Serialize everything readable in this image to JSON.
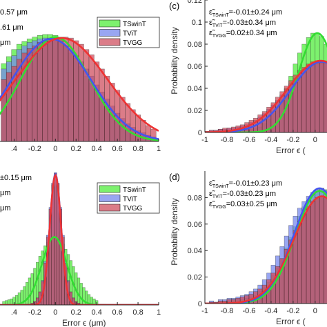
{
  "colors": {
    "TSwinT": "#33dd33",
    "TViT": "#4455ee",
    "TVGG": "#ee3333",
    "TSwinT_fill": "#66ee55",
    "TViT_fill": "#7788ee",
    "TVGG_fill": "#cc4455"
  },
  "chart_data": [
    {
      "id": "a",
      "type": "bar",
      "panel_label": "",
      "xlabel": "",
      "ylabel": "",
      "xlim": [
        -0.55,
        1.0
      ],
      "ylim": [
        0,
        0.16
      ],
      "xticks": [
        -0.4,
        -0.2,
        0,
        0.2,
        0.4,
        0.6,
        0.8,
        1
      ],
      "xtick_labels": [
        ".4",
        "-0.2",
        "0",
        "0.2",
        "0.4",
        "0.6",
        "0.8",
        "1"
      ],
      "stat_lines": [
        "0.57 μm",
        ".61 μm",
        "μm"
      ],
      "legend": [
        "TSwinT",
        "TViT",
        "TVGG"
      ],
      "legend_position": "top-right",
      "bin_centers": [
        -0.5,
        -0.45,
        -0.4,
        -0.35,
        -0.3,
        -0.25,
        -0.2,
        -0.15,
        -0.1,
        -0.05,
        0.0,
        0.05,
        0.1,
        0.15,
        0.2,
        0.25,
        0.3,
        0.35,
        0.4,
        0.45,
        0.5,
        0.55,
        0.6,
        0.65,
        0.7,
        0.75,
        0.8,
        0.85,
        0.9,
        0.95
      ],
      "series": [
        {
          "name": "TSwinT",
          "values": [
            0.088,
            0.096,
            0.104,
            0.11,
            0.113,
            0.116,
            0.118,
            0.12,
            0.121,
            0.121,
            0.12,
            0.116,
            0.108,
            0.1,
            0.094,
            0.085,
            0.074,
            0.066,
            0.055,
            0.048,
            0.04,
            0.033,
            0.025,
            0.02,
            0.015,
            0.012,
            0.008,
            0.006,
            0.004,
            0.003
          ],
          "fit": {
            "mu": 0.0,
            "sigma": 0.33,
            "peak": 0.118
          }
        },
        {
          "name": "TViT",
          "values": [
            0.082,
            0.09,
            0.097,
            0.104,
            0.108,
            0.112,
            0.114,
            0.116,
            0.117,
            0.117,
            0.116,
            0.113,
            0.108,
            0.103,
            0.097,
            0.09,
            0.082,
            0.074,
            0.064,
            0.056,
            0.048,
            0.04,
            0.032,
            0.026,
            0.02,
            0.016,
            0.012,
            0.01,
            0.007,
            0.005
          ],
          "fit": {
            "mu": -0.04,
            "sigma": 0.38,
            "peak": 0.116
          }
        },
        {
          "name": "TVGG",
          "values": [
            0.07,
            0.078,
            0.085,
            0.093,
            0.1,
            0.105,
            0.108,
            0.112,
            0.113,
            0.115,
            0.117,
            0.118,
            0.118,
            0.117,
            0.114,
            0.11,
            0.104,
            0.098,
            0.09,
            0.082,
            0.074,
            0.066,
            0.058,
            0.05,
            0.043,
            0.036,
            0.03,
            0.024,
            0.018,
            0.014
          ],
          "fit": {
            "mu": 0.06,
            "sigma": 0.44,
            "peak": 0.117
          }
        }
      ]
    },
    {
      "id": "c",
      "type": "bar",
      "panel_label": "(c)",
      "xlabel": "Error ϵ (",
      "ylabel": "Probability density",
      "xlim": [
        -1.0,
        0.12
      ],
      "ylim": [
        0,
        0.12
      ],
      "xticks": [
        -1,
        -0.8,
        -0.6,
        -0.4,
        -0.2,
        0
      ],
      "xtick_labels": [
        "-1",
        "-0.8",
        "-0.6",
        "-0.4",
        "-0.2",
        "0"
      ],
      "yticks": [
        0,
        0.02,
        0.04,
        0.06,
        0.08,
        0.1,
        0.12
      ],
      "ytick_labels": [
        "0",
        "0.02",
        "0.04",
        "0.06",
        "0.08",
        "0.1",
        "0.12"
      ],
      "stat_lines": [
        {
          "main": "ε̃",
          "sub": "TSwinT",
          "rest": "=-0.01±0.24 μm"
        },
        {
          "main": "ε̃",
          "sub": "TViT",
          "rest": "=-0.03±0.34 μm"
        },
        {
          "main": "ε̃",
          "sub": "TVGG",
          "rest": "=0.02±0.34 μm"
        }
      ],
      "bin_centers": [
        -0.98,
        -0.94,
        -0.9,
        -0.86,
        -0.82,
        -0.78,
        -0.74,
        -0.7,
        -0.66,
        -0.62,
        -0.58,
        -0.54,
        -0.5,
        -0.46,
        -0.42,
        -0.38,
        -0.34,
        -0.3,
        -0.26,
        -0.22,
        -0.18,
        -0.14,
        -0.1,
        -0.06,
        -0.02,
        0.02,
        0.06,
        0.1
      ],
      "series": [
        {
          "name": "TSwinT",
          "values": [
            0.0,
            0.0,
            0.001,
            0.0,
            0.001,
            0.0,
            0.001,
            0.001,
            0.002,
            0.002,
            0.003,
            0.004,
            0.005,
            0.008,
            0.012,
            0.017,
            0.023,
            0.03,
            0.04,
            0.051,
            0.062,
            0.072,
            0.08,
            0.086,
            0.09,
            0.09,
            0.087,
            0.08
          ],
          "fit": {
            "mu": 0.02,
            "sigma": 0.17,
            "peak": 0.09
          }
        },
        {
          "name": "TViT",
          "values": [
            0.001,
            0.002,
            0.002,
            0.003,
            0.003,
            0.004,
            0.004,
            0.005,
            0.006,
            0.007,
            0.009,
            0.011,
            0.014,
            0.017,
            0.021,
            0.025,
            0.029,
            0.034,
            0.039,
            0.044,
            0.049,
            0.054,
            0.057,
            0.06,
            0.062,
            0.063,
            0.063,
            0.063
          ],
          "fit": {
            "mu": 0.06,
            "sigma": 0.28,
            "peak": 0.064
          }
        },
        {
          "name": "TVGG",
          "values": [
            0.001,
            0.002,
            0.002,
            0.003,
            0.004,
            0.004,
            0.005,
            0.006,
            0.007,
            0.009,
            0.011,
            0.013,
            0.016,
            0.019,
            0.023,
            0.027,
            0.032,
            0.037,
            0.042,
            0.047,
            0.052,
            0.056,
            0.059,
            0.062,
            0.064,
            0.065,
            0.065,
            0.064
          ],
          "fit": {
            "mu": 0.05,
            "sigma": 0.3,
            "peak": 0.065
          }
        }
      ]
    },
    {
      "id": "b",
      "type": "bar",
      "panel_label": "",
      "xlabel": "Error ϵ (μm)",
      "ylabel": "",
      "xlim": [
        -0.55,
        1.0
      ],
      "ylim": [
        0,
        0.16
      ],
      "xticks": [
        -0.4,
        -0.2,
        0,
        0.2,
        0.4,
        0.6,
        0.8,
        1
      ],
      "xtick_labels": [
        ".4",
        "-0.2",
        "0",
        "0.2",
        "0.4",
        "0.6",
        "0.8",
        "1"
      ],
      "stat_lines": [
        "±0.15 μm",
        "μm",
        "μm"
      ],
      "legend": [
        "TSwinT",
        "TViT",
        "TVGG"
      ],
      "legend_position": "top-right",
      "bin_centers": [
        -0.5,
        -0.475,
        -0.45,
        -0.425,
        -0.4,
        -0.375,
        -0.35,
        -0.325,
        -0.3,
        -0.275,
        -0.25,
        -0.225,
        -0.2,
        -0.175,
        -0.15,
        -0.125,
        -0.1,
        -0.075,
        -0.05,
        -0.025,
        0.0,
        0.025,
        0.05,
        0.075,
        0.1,
        0.125,
        0.15,
        0.175,
        0.2,
        0.225,
        0.25,
        0.275,
        0.3,
        0.325,
        0.35,
        0.375,
        0.4
      ],
      "series": [
        {
          "name": "TSwinT",
          "values": [
            0.004,
            0.005,
            0.006,
            0.007,
            0.009,
            0.011,
            0.014,
            0.017,
            0.021,
            0.026,
            0.031,
            0.036,
            0.042,
            0.049,
            0.056,
            0.062,
            0.068,
            0.072,
            0.076,
            0.078,
            0.078,
            0.077,
            0.074,
            0.07,
            0.064,
            0.058,
            0.051,
            0.044,
            0.037,
            0.031,
            0.025,
            0.02,
            0.016,
            0.012,
            0.009,
            0.007,
            0.005
          ],
          "fit": {
            "mu": -0.01,
            "sigma": 0.12,
            "peak": 0.078
          }
        },
        {
          "name": "TViT",
          "values": [
            0.0,
            0.0,
            0.0,
            0.0,
            0.0,
            0.0,
            0.0,
            0.0,
            0.0,
            0.001,
            0.001,
            0.002,
            0.004,
            0.008,
            0.015,
            0.028,
            0.05,
            0.08,
            0.112,
            0.14,
            0.152,
            0.14,
            0.112,
            0.08,
            0.05,
            0.028,
            0.015,
            0.008,
            0.004,
            0.002,
            0.001,
            0.0,
            0.0,
            0.0,
            0.0,
            0.0,
            0.0
          ],
          "fit": {
            "mu": 0.0,
            "sigma": 0.055,
            "peak": 0.15
          }
        },
        {
          "name": "TVGG",
          "values": [
            0.0,
            0.0,
            0.0,
            0.0,
            0.0,
            0.0,
            0.0,
            0.0,
            0.0,
            0.001,
            0.001,
            0.002,
            0.004,
            0.008,
            0.015,
            0.027,
            0.048,
            0.078,
            0.11,
            0.138,
            0.151,
            0.139,
            0.11,
            0.078,
            0.048,
            0.027,
            0.015,
            0.008,
            0.004,
            0.002,
            0.001,
            0.0,
            0.0,
            0.0,
            0.0,
            0.0,
            0.0
          ],
          "fit": {
            "mu": 0.0,
            "sigma": 0.055,
            "peak": 0.149
          }
        }
      ]
    },
    {
      "id": "d",
      "type": "bar",
      "panel_label": "(d)",
      "xlabel": "Error ϵ (",
      "ylabel": "Probability density",
      "xlim": [
        -1.0,
        0.12
      ],
      "ylim": [
        0,
        0.1
      ],
      "xticks": [
        -1,
        -0.8,
        -0.6,
        -0.4,
        -0.2,
        0
      ],
      "xtick_labels": [
        "-1",
        "-0.8",
        "-0.6",
        "-0.4",
        "-0.2",
        "0"
      ],
      "yticks": [
        0,
        0.02,
        0.04,
        0.06,
        0.08
      ],
      "ytick_labels": [
        "0",
        "0.02",
        "0.04",
        "0.06",
        "0.08"
      ],
      "stat_lines": [
        {
          "main": "ε̃",
          "sub": "TSwinT",
          "rest": "=-0.01±0.23 μm"
        },
        {
          "main": "ε̃",
          "sub": "TViT",
          "rest": "=-0.03±0.23 μm"
        },
        {
          "main": "ε̃",
          "sub": "TVGG",
          "rest": "=0.03±0.25 μm"
        }
      ],
      "bin_centers": [
        -0.98,
        -0.94,
        -0.9,
        -0.86,
        -0.82,
        -0.78,
        -0.74,
        -0.7,
        -0.66,
        -0.62,
        -0.58,
        -0.54,
        -0.5,
        -0.46,
        -0.42,
        -0.38,
        -0.34,
        -0.3,
        -0.26,
        -0.22,
        -0.18,
        -0.14,
        -0.1,
        -0.06,
        -0.02,
        0.02,
        0.06,
        0.1
      ],
      "series": [
        {
          "name": "TSwinT",
          "values": [
            0.0,
            0.001,
            0.001,
            0.002,
            0.002,
            0.002,
            0.003,
            0.003,
            0.003,
            0.004,
            0.005,
            0.006,
            0.009,
            0.012,
            0.016,
            0.021,
            0.027,
            0.034,
            0.042,
            0.05,
            0.058,
            0.066,
            0.073,
            0.078,
            0.082,
            0.085,
            0.087,
            0.086
          ],
          "fit": {
            "mu": 0.04,
            "sigma": 0.22,
            "peak": 0.085
          }
        },
        {
          "name": "TViT",
          "values": [
            0.0,
            0.002,
            0.001,
            0.003,
            0.003,
            0.004,
            0.004,
            0.005,
            0.006,
            0.007,
            0.009,
            0.011,
            0.014,
            0.018,
            0.023,
            0.029,
            0.036,
            0.043,
            0.051,
            0.059,
            0.066,
            0.072,
            0.077,
            0.081,
            0.084,
            0.086,
            0.087,
            0.085
          ],
          "fit": {
            "mu": 0.04,
            "sigma": 0.23,
            "peak": 0.087
          }
        },
        {
          "name": "TVGG",
          "values": [
            0.0,
            0.001,
            0.001,
            0.002,
            0.002,
            0.003,
            0.003,
            0.004,
            0.005,
            0.006,
            0.007,
            0.009,
            0.011,
            0.014,
            0.018,
            0.023,
            0.028,
            0.034,
            0.041,
            0.048,
            0.055,
            0.062,
            0.068,
            0.073,
            0.077,
            0.08,
            0.081,
            0.08
          ],
          "fit": {
            "mu": 0.06,
            "sigma": 0.25,
            "peak": 0.081
          }
        }
      ]
    }
  ]
}
